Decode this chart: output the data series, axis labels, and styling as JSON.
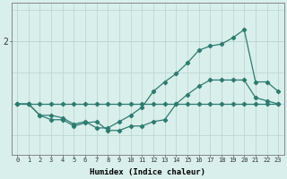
{
  "xlabel": "Humidex (Indice chaleur)",
  "background_color": "#d9efeb",
  "line_color": "#2e7b70",
  "grid_color": "#bcd8d3",
  "x": [
    0,
    1,
    2,
    3,
    4,
    5,
    6,
    7,
    8,
    9,
    10,
    11,
    12,
    13,
    14,
    15,
    16,
    17,
    18,
    19,
    20,
    21,
    22,
    23
  ],
  "line_flat": [
    1.0,
    1.0,
    1.0,
    1.0,
    1.0,
    1.0,
    1.0,
    1.0,
    1.0,
    1.0,
    1.0,
    1.0,
    1.0,
    1.0,
    1.0,
    1.0,
    1.0,
    1.0,
    1.0,
    1.0,
    1.0,
    1.0,
    1.0,
    1.0
  ],
  "line_mid": [
    1.0,
    1.0,
    0.82,
    0.75,
    0.75,
    0.65,
    0.7,
    0.72,
    0.58,
    0.58,
    0.65,
    0.65,
    0.72,
    0.75,
    1.0,
    1.15,
    1.28,
    1.38,
    1.38,
    1.38,
    1.38,
    1.1,
    1.05,
    1.0
  ],
  "line_high": [
    1.0,
    1.0,
    0.82,
    0.82,
    0.78,
    0.68,
    0.72,
    0.62,
    0.62,
    0.72,
    0.82,
    0.95,
    1.2,
    1.35,
    1.48,
    1.65,
    1.85,
    1.92,
    1.95,
    2.05,
    2.18,
    1.35,
    1.35,
    1.2
  ],
  "ytick_val": 2.0,
  "ytick_label": "2",
  "ylim": [
    0.2,
    2.6
  ],
  "xlim": [
    -0.5,
    23.5
  ],
  "figsize": [
    3.2,
    2.0
  ],
  "dpi": 100
}
